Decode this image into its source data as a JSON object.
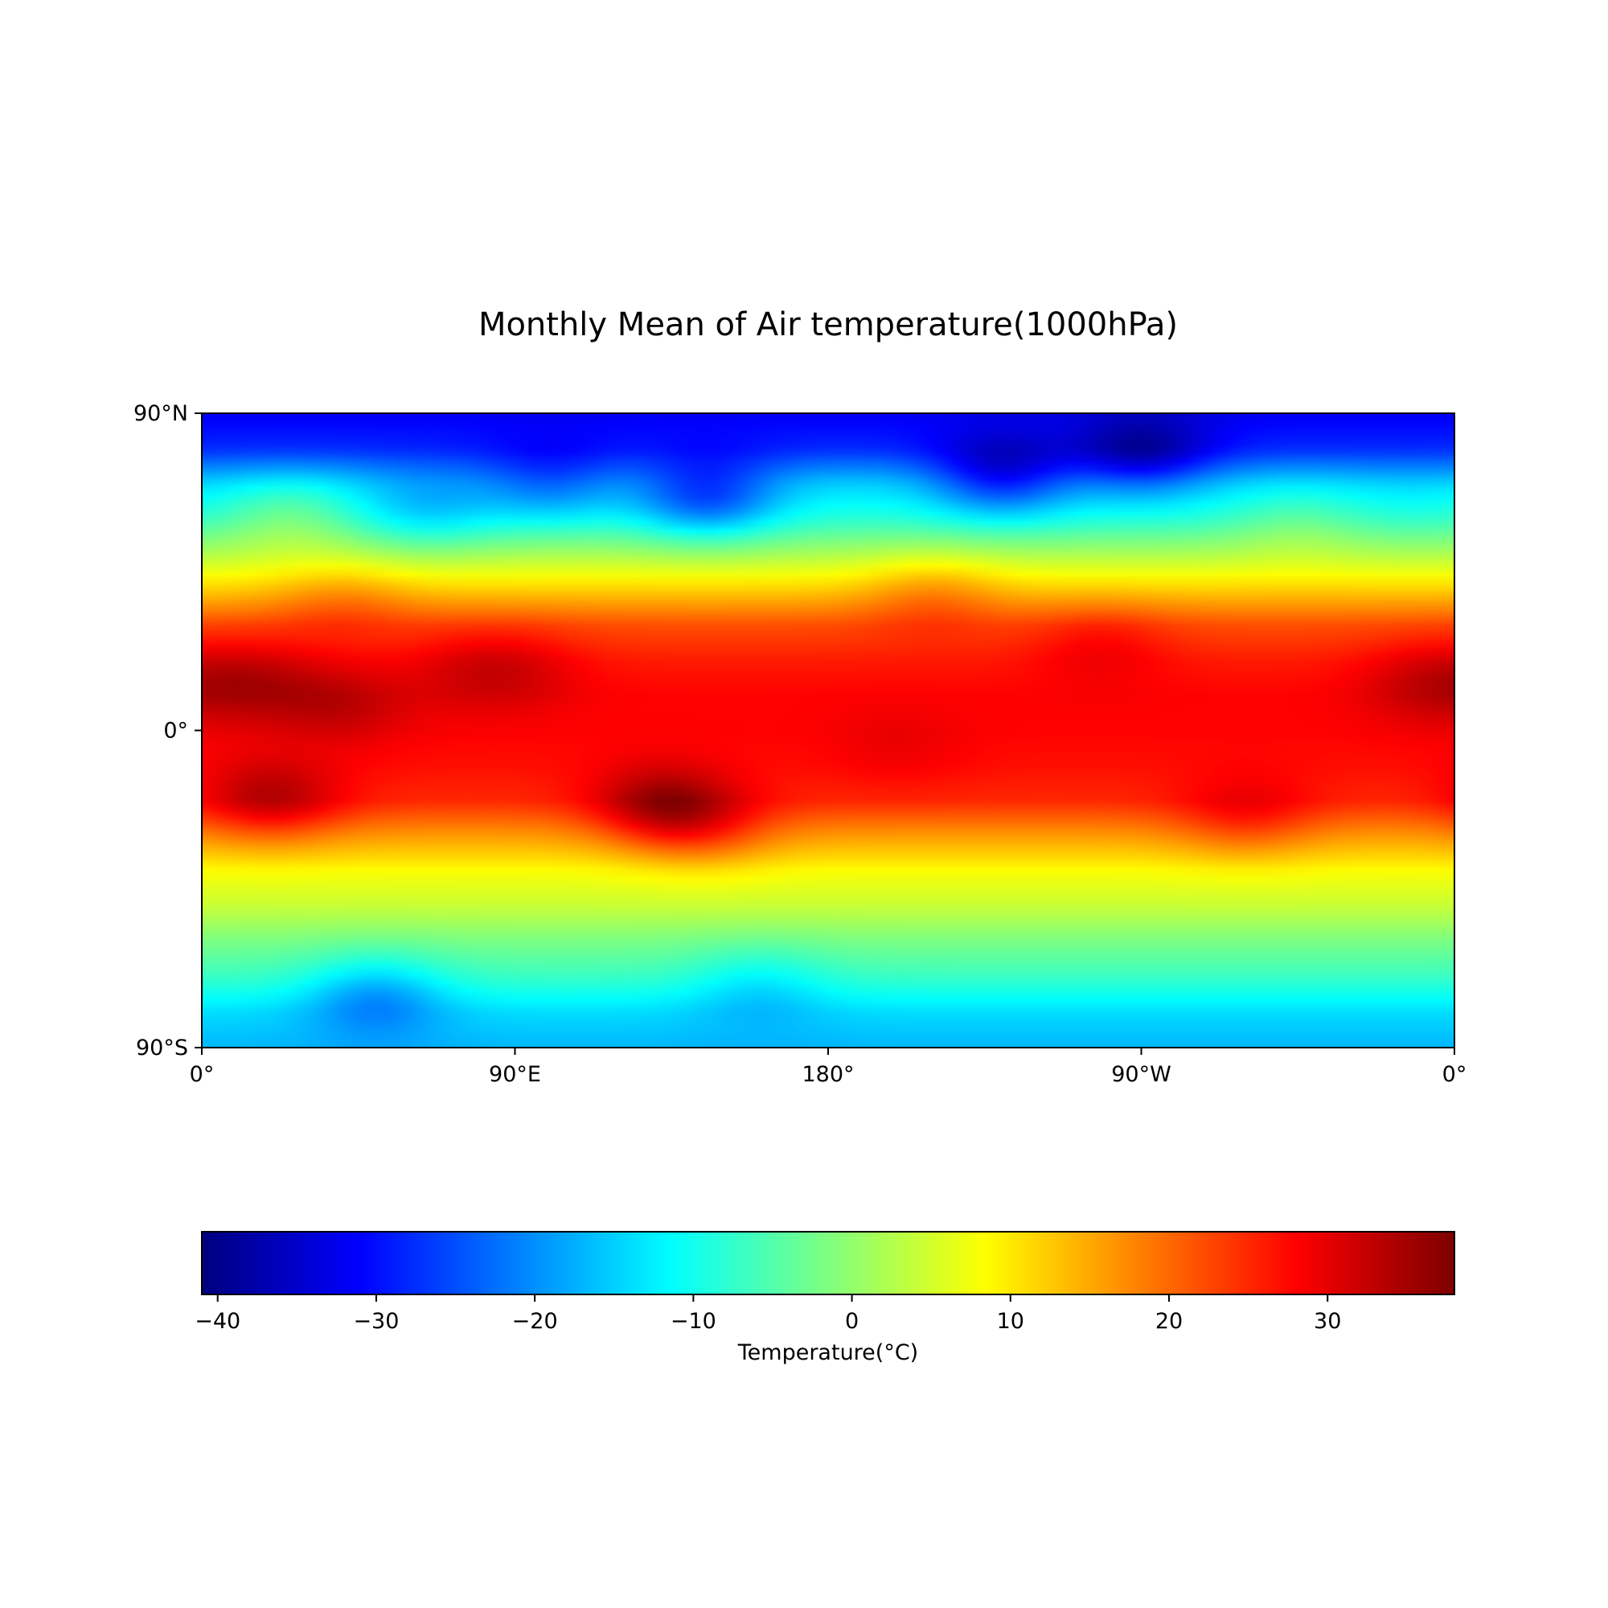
{
  "chart_data": [
    {
      "type": "heatmap",
      "title": "Monthly Mean of Air temperature(1000hPa)",
      "projection": "equirectangular",
      "x_ticks": [
        "0°",
        "90°E",
        "180°",
        "90°W",
        "0°"
      ],
      "x_tick_values": [
        0,
        90,
        180,
        270,
        360
      ],
      "y_ticks": [
        "90°N",
        "0°",
        "90°S"
      ],
      "y_tick_values": [
        90,
        0,
        -90
      ],
      "xlim": [
        0,
        360
      ],
      "ylim": [
        -90,
        90
      ],
      "grid": false,
      "colormap": "jet",
      "zonal_profile": {
        "latitude": [
          90,
          80,
          70,
          60,
          50,
          40,
          30,
          20,
          10,
          0,
          -10,
          -20,
          -30,
          -40,
          -50,
          -60,
          -70,
          -80,
          -90
        ],
        "temperature": [
          -32,
          -28,
          -15,
          -8,
          2,
          12,
          22,
          26,
          28,
          28,
          27,
          25,
          16,
          8,
          4,
          -2,
          -7,
          -14,
          -17
        ]
      },
      "regional_anomalies": [
        {
          "lon": 15,
          "lat": 14,
          "delta": 6
        },
        {
          "lon": 40,
          "lat": 8,
          "delta": 5
        },
        {
          "lon": 20,
          "lat": -20,
          "delta": 9
        },
        {
          "lon": 132,
          "lat": -22,
          "delta": 11
        },
        {
          "lon": 145,
          "lat": -28,
          "delta": 6
        },
        {
          "lon": 90,
          "lat": 18,
          "delta": 4
        },
        {
          "lon": 75,
          "lat": 18,
          "delta": 3
        },
        {
          "lon": 300,
          "lat": -25,
          "delta": 6
        },
        {
          "lon": 258,
          "lat": 25,
          "delta": 4
        },
        {
          "lon": 352,
          "lat": 14,
          "delta": 5
        },
        {
          "lon": 40,
          "lat": 38,
          "delta": 4
        },
        {
          "lon": 200,
          "lat": -5,
          "delta": 2
        },
        {
          "lon": 270,
          "lat": 78,
          "delta": -12
        },
        {
          "lon": 230,
          "lat": 72,
          "delta": -14
        },
        {
          "lon": 145,
          "lat": 66,
          "delta": -14
        },
        {
          "lon": 100,
          "lat": 70,
          "delta": -8
        },
        {
          "lon": 65,
          "lat": 62,
          "delta": -6
        },
        {
          "lon": 210,
          "lat": 40,
          "delta": 5
        },
        {
          "lon": 315,
          "lat": 60,
          "delta": 4
        },
        {
          "lon": 25,
          "lat": 62,
          "delta": 6
        },
        {
          "lon": 50,
          "lat": -75,
          "delta": -9
        },
        {
          "lon": 160,
          "lat": -72,
          "delta": -5
        }
      ]
    },
    {
      "type": "colorbar",
      "xlabel": "Temperature(°C)",
      "range": [
        -41,
        38
      ],
      "ticks": [
        -40,
        -30,
        -20,
        -10,
        0,
        10,
        20,
        30
      ],
      "tick_labels": [
        "−40",
        "−30",
        "−20",
        "−10",
        "0",
        "10",
        "20",
        "30"
      ],
      "orientation": "horizontal",
      "colormap": "jet"
    }
  ]
}
